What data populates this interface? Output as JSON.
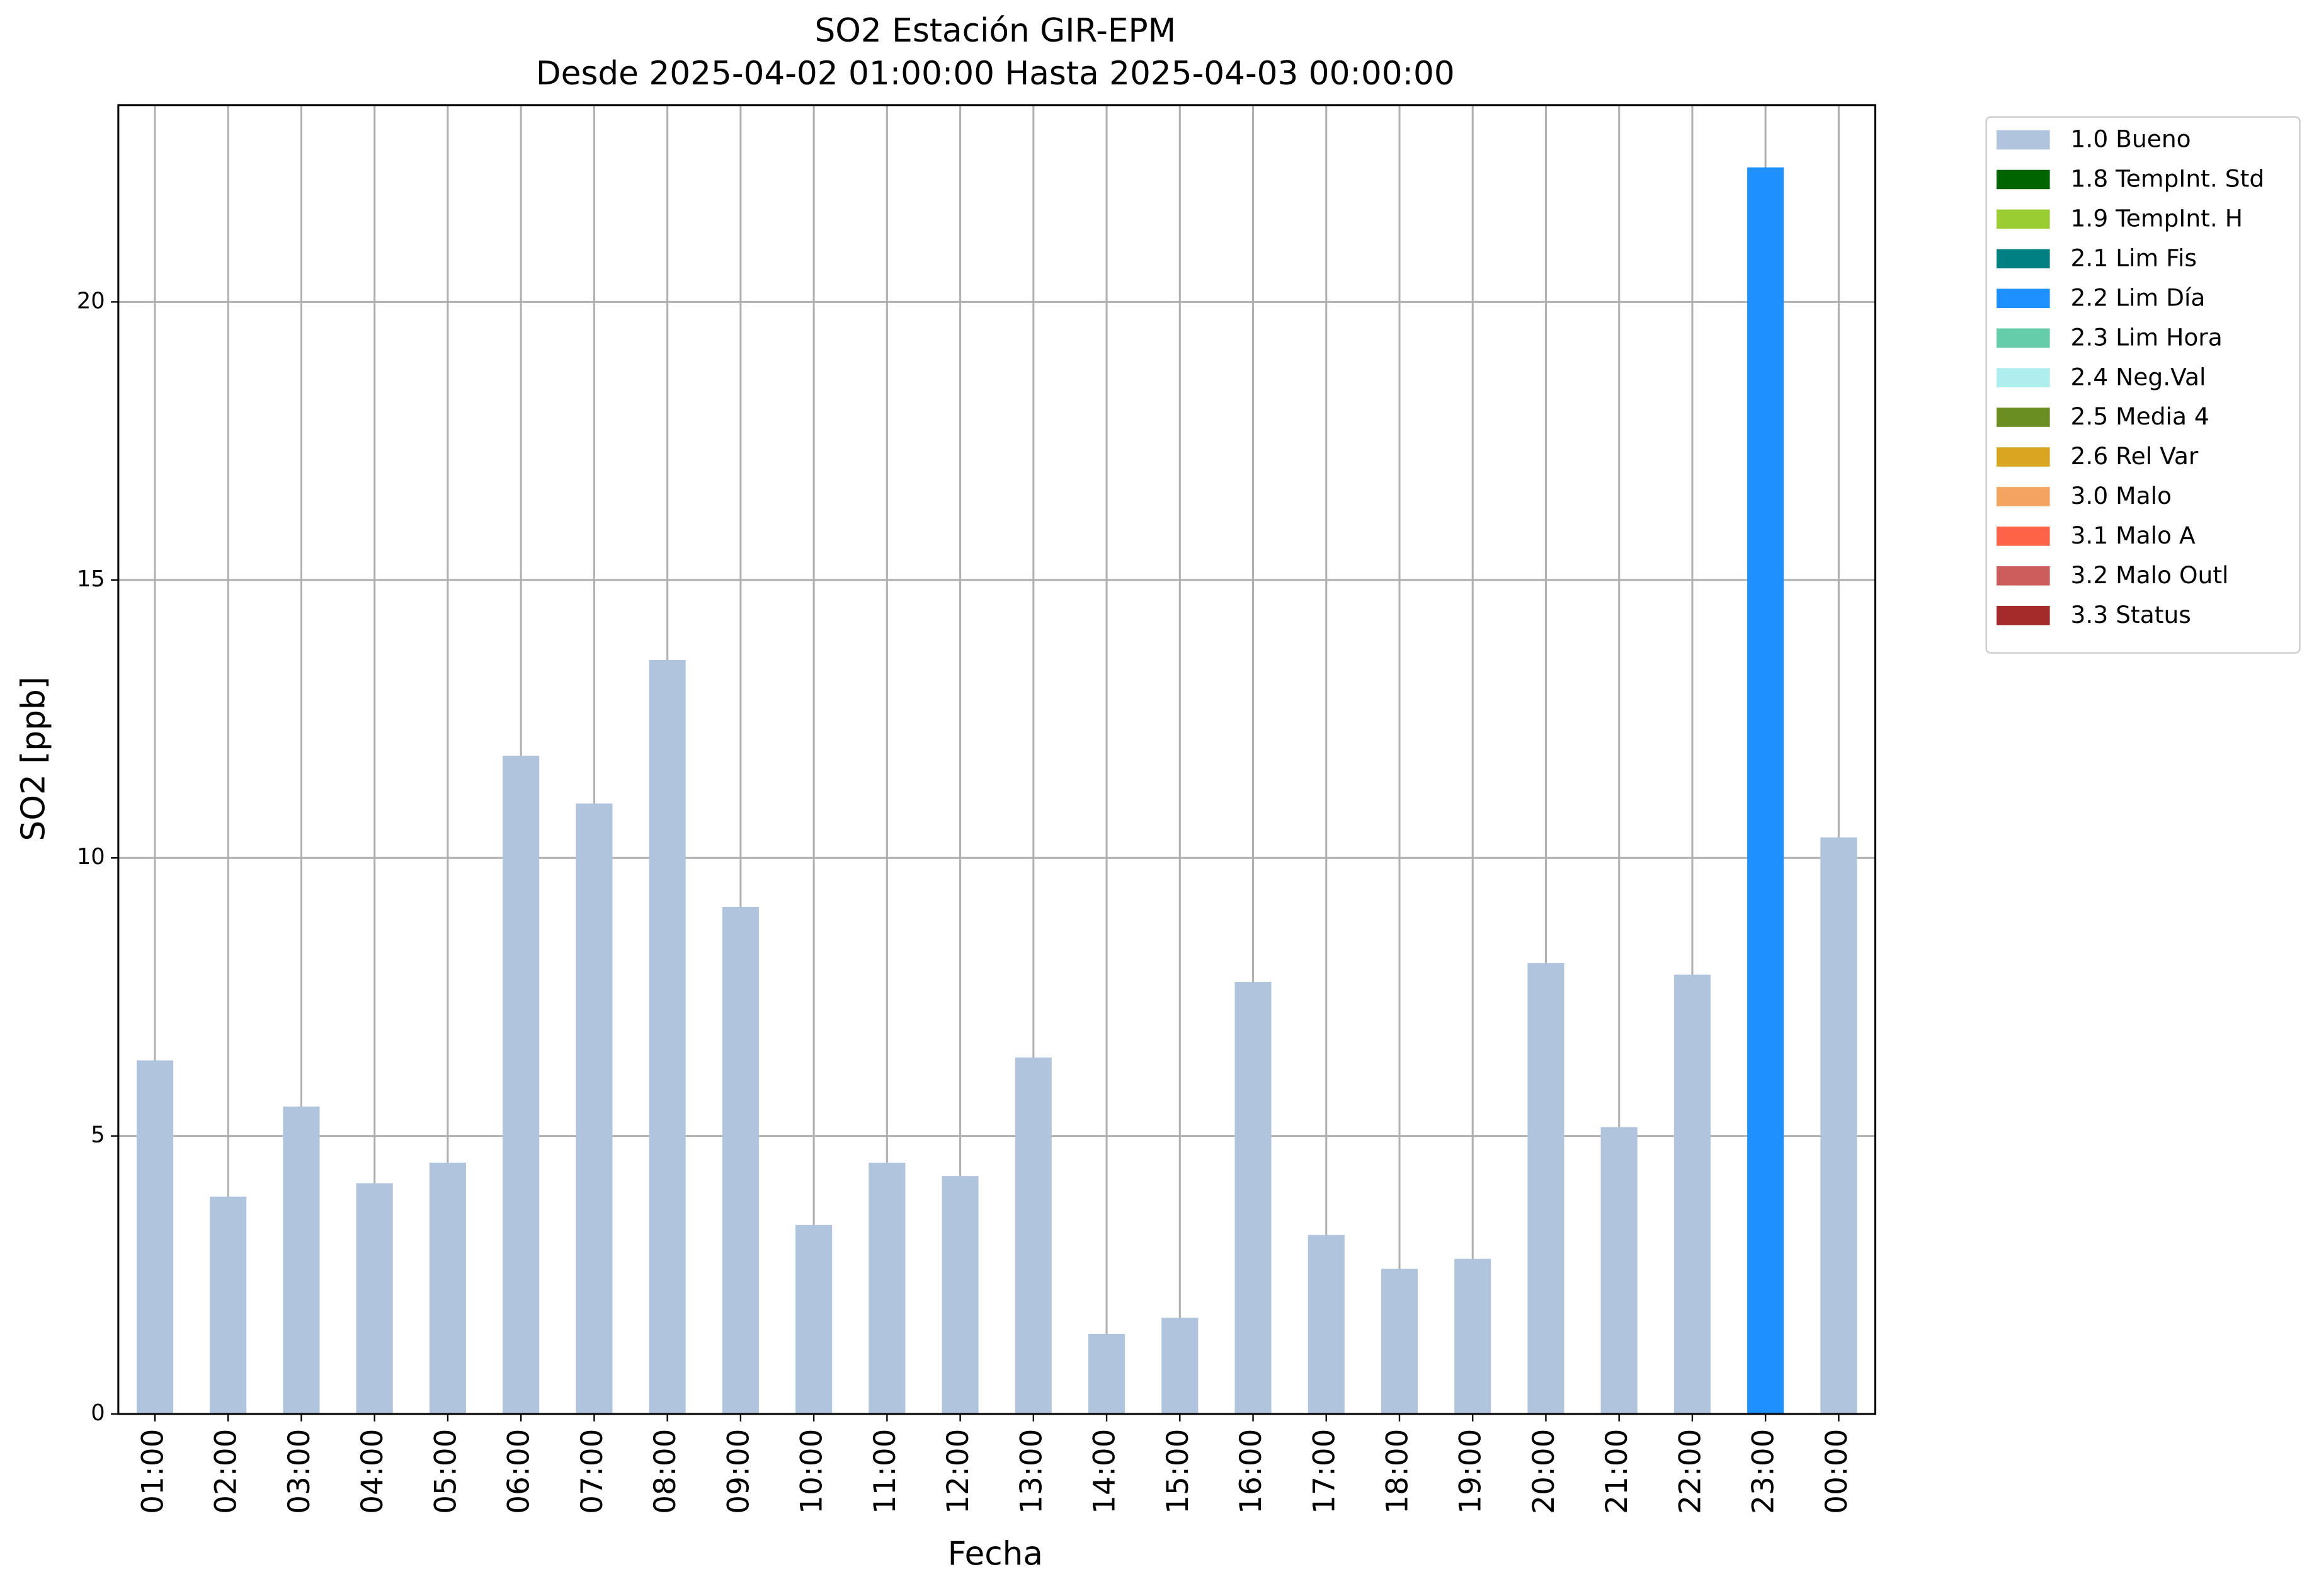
{
  "chart_data": {
    "type": "bar",
    "stacked": true,
    "title": "SO2 Estación GIR-EPM",
    "subtitle": "Desde 2025-04-02 01:00:00 Hasta 2025-04-03 00:00:00",
    "x_label": "Fecha",
    "y_label": "SO2 [ppb]",
    "categories": [
      "01:00",
      "02:00",
      "03:00",
      "04:00",
      "05:00",
      "06:00",
      "07:00",
      "08:00",
      "09:00",
      "10:00",
      "11:00",
      "12:00",
      "13:00",
      "14:00",
      "15:00",
      "16:00",
      "17:00",
      "18:00",
      "19:00",
      "20:00",
      "21:00",
      "22:00",
      "23:00",
      "00:00"
    ],
    "series": [
      {
        "name": "1.0 Bueno",
        "color": "#b0c4de",
        "values": [
          6.36,
          3.91,
          5.53,
          4.15,
          4.52,
          11.84,
          10.98,
          13.56,
          9.12,
          3.4,
          4.52,
          4.28,
          6.41,
          1.44,
          1.73,
          7.77,
          3.22,
          2.61,
          2.79,
          8.11,
          5.16,
          7.9,
          null,
          10.37
        ]
      },
      {
        "name": "1.8 TempInt. Std",
        "color": "#006400",
        "values": [
          null,
          null,
          null,
          null,
          null,
          null,
          null,
          null,
          null,
          null,
          null,
          null,
          null,
          null,
          null,
          null,
          null,
          null,
          null,
          null,
          null,
          null,
          null,
          null
        ]
      },
      {
        "name": "1.9 TempInt. H",
        "color": "#9acd32",
        "values": [
          null,
          null,
          null,
          null,
          null,
          null,
          null,
          null,
          null,
          null,
          null,
          null,
          null,
          null,
          null,
          null,
          null,
          null,
          null,
          null,
          null,
          null,
          null,
          null
        ]
      },
      {
        "name": "2.1 Lim Fis",
        "color": "#008080",
        "values": [
          null,
          null,
          null,
          null,
          null,
          null,
          null,
          null,
          null,
          null,
          null,
          null,
          null,
          null,
          null,
          null,
          null,
          null,
          null,
          null,
          null,
          null,
          null,
          null
        ]
      },
      {
        "name": "2.2 Lim Día",
        "color": "#1e90ff",
        "values": [
          null,
          null,
          null,
          null,
          null,
          null,
          null,
          null,
          null,
          null,
          null,
          null,
          null,
          null,
          null,
          null,
          null,
          null,
          null,
          null,
          null,
          null,
          22.42,
          null
        ]
      },
      {
        "name": "2.3 Lim Hora",
        "color": "#66cdaa",
        "values": [
          null,
          null,
          null,
          null,
          null,
          null,
          null,
          null,
          null,
          null,
          null,
          null,
          null,
          null,
          null,
          null,
          null,
          null,
          null,
          null,
          null,
          null,
          null,
          null
        ]
      },
      {
        "name": "2.4 Neg.Val",
        "color": "#afeeee",
        "values": [
          null,
          null,
          null,
          null,
          null,
          null,
          null,
          null,
          null,
          null,
          null,
          null,
          null,
          null,
          null,
          null,
          null,
          null,
          null,
          null,
          null,
          null,
          null,
          null
        ]
      },
      {
        "name": "2.5 Media 4",
        "color": "#6b8e23",
        "values": [
          null,
          null,
          null,
          null,
          null,
          null,
          null,
          null,
          null,
          null,
          null,
          null,
          null,
          null,
          null,
          null,
          null,
          null,
          null,
          null,
          null,
          null,
          null,
          null
        ]
      },
      {
        "name": "2.6 Rel Var",
        "color": "#daa520",
        "values": [
          null,
          null,
          null,
          null,
          null,
          null,
          null,
          null,
          null,
          null,
          null,
          null,
          null,
          null,
          null,
          null,
          null,
          null,
          null,
          null,
          null,
          null,
          null,
          null
        ]
      },
      {
        "name": "3.0 Malo",
        "color": "#f4a460",
        "values": [
          null,
          null,
          null,
          null,
          null,
          null,
          null,
          null,
          null,
          null,
          null,
          null,
          null,
          null,
          null,
          null,
          null,
          null,
          null,
          null,
          null,
          null,
          null,
          null
        ]
      },
      {
        "name": "3.1 Malo A",
        "color": "#ff6347",
        "values": [
          null,
          null,
          null,
          null,
          null,
          null,
          null,
          null,
          null,
          null,
          null,
          null,
          null,
          null,
          null,
          null,
          null,
          null,
          null,
          null,
          null,
          null,
          null,
          null
        ]
      },
      {
        "name": "3.2 Malo Outl",
        "color": "#cd5c5c",
        "values": [
          null,
          null,
          null,
          null,
          null,
          null,
          null,
          null,
          null,
          null,
          null,
          null,
          null,
          null,
          null,
          null,
          null,
          null,
          null,
          null,
          null,
          null,
          null,
          null
        ]
      },
      {
        "name": "3.3 Status",
        "color": "#a52a2a",
        "values": [
          null,
          null,
          null,
          null,
          null,
          null,
          null,
          null,
          null,
          null,
          null,
          null,
          null,
          null,
          null,
          null,
          null,
          null,
          null,
          null,
          null,
          null,
          null,
          null
        ]
      }
    ],
    "ylim": [
      0,
      23.54
    ],
    "yticks": [
      0,
      5,
      10,
      15,
      20
    ],
    "grid": true,
    "legend": "outside upper right"
  }
}
